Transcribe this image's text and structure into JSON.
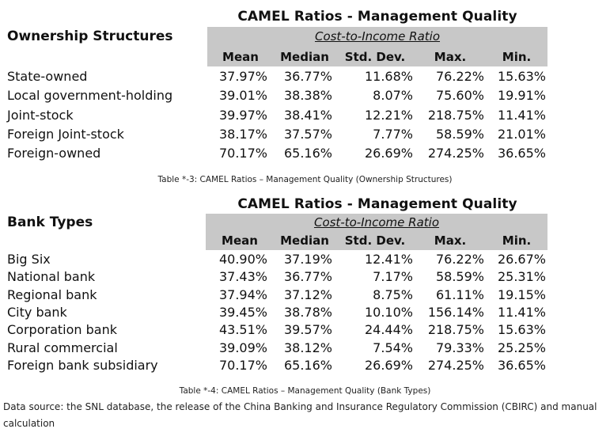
{
  "table1": {
    "title": "CAMEL Ratios - Management Quality",
    "heading": "Ownership Structures",
    "metric_label": "Cost-to-Income Ratio",
    "columns": [
      "Mean",
      "Median",
      "Std. Dev.",
      "Max.",
      "Min."
    ],
    "rows": [
      {
        "label": "State-owned",
        "values": [
          "37.97%",
          "36.77%",
          "11.68%",
          "76.22%",
          "15.63%"
        ]
      },
      {
        "label": "Local government-holding",
        "values": [
          "39.01%",
          "38.38%",
          "8.07%",
          "75.60%",
          "19.91%"
        ]
      },
      {
        "label": "Joint-stock",
        "values": [
          "39.97%",
          "38.41%",
          "12.21%",
          "218.75%",
          "11.41%"
        ]
      },
      {
        "label": "Foreign Joint-stock",
        "values": [
          "38.17%",
          "37.57%",
          "7.77%",
          "58.59%",
          "21.01%"
        ]
      },
      {
        "label": "Foreign-owned",
        "values": [
          "70.17%",
          "65.16%",
          "26.69%",
          "274.25%",
          "36.65%"
        ]
      }
    ],
    "caption": "Table *-3: CAMEL Ratios – Management Quality (Ownership Structures)"
  },
  "table2": {
    "title": "CAMEL Ratios - Management Quality",
    "heading": "Bank Types",
    "metric_label": "Cost-to-Income Ratio",
    "columns": [
      "Mean",
      "Median",
      "Std. Dev.",
      "Max.",
      "Min."
    ],
    "rows": [
      {
        "label": "Big Six",
        "values": [
          "40.90%",
          "37.19%",
          "12.41%",
          "76.22%",
          "26.67%"
        ]
      },
      {
        "label": "National bank",
        "values": [
          "37.43%",
          "36.77%",
          "7.17%",
          "58.59%",
          "25.31%"
        ]
      },
      {
        "label": "Regional bank",
        "values": [
          "37.94%",
          "37.12%",
          "8.75%",
          "61.11%",
          "19.15%"
        ]
      },
      {
        "label": "City bank",
        "values": [
          "39.45%",
          "38.78%",
          "10.10%",
          "156.14%",
          "11.41%"
        ]
      },
      {
        "label": "Corporation bank",
        "values": [
          "43.51%",
          "39.57%",
          "24.44%",
          "218.75%",
          "15.63%"
        ]
      },
      {
        "label": "Rural commercial",
        "values": [
          "39.09%",
          "38.12%",
          "7.54%",
          "79.33%",
          "25.25%"
        ]
      },
      {
        "label": "Foreign bank subsidiary",
        "values": [
          "70.17%",
          "65.16%",
          "26.69%",
          "274.25%",
          "36.65%"
        ]
      }
    ],
    "caption": "Table *-4: CAMEL Ratios – Management Quality (Bank Types)"
  },
  "source_note": "Data source: the SNL database, the release of the China Banking and Insurance Regulatory Commission (CBIRC) and manual calculation"
}
